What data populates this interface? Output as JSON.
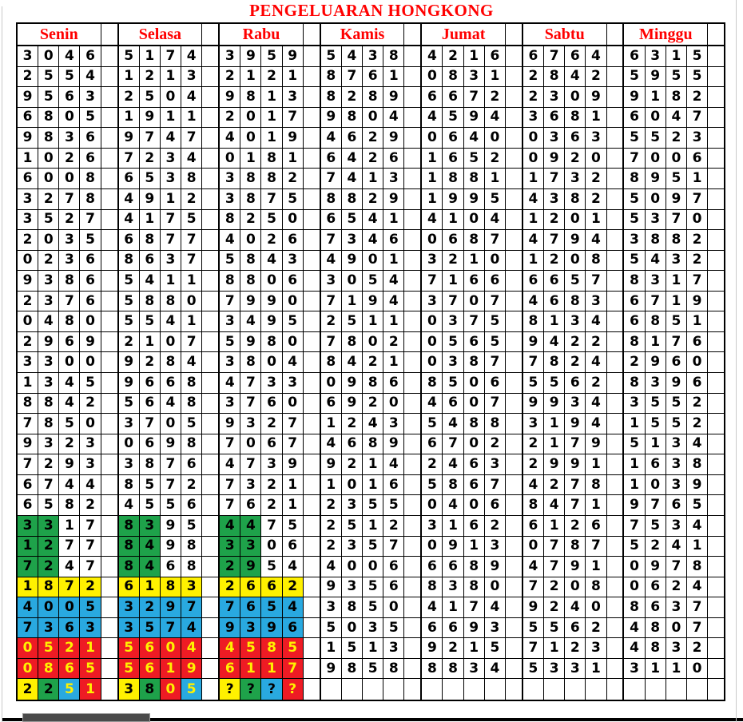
{
  "title": "PENGELUARAN HONGKONG",
  "days": [
    "Senin",
    "Selasa",
    "Rabu",
    "Kamis",
    "Jumat",
    "Sabtu",
    "Minggu"
  ],
  "colors": {
    "header_text": "#FF0000",
    "green": "#1EA24A",
    "yellow": "#FFF100",
    "blue": "#29A9E0",
    "red": "#EE1B24",
    "red_text": "#FFF100",
    "black": "#000000"
  },
  "table": {
    "rows": [
      [
        "3046",
        "5174",
        "3959",
        "5438",
        "4216",
        "6764",
        "6315"
      ],
      [
        "2554",
        "1213",
        "2121",
        "8761",
        "0831",
        "2842",
        "5955"
      ],
      [
        "9563",
        "2504",
        "9813",
        "8289",
        "6672",
        "2309",
        "9182"
      ],
      [
        "6805",
        "1911",
        "2017",
        "9804",
        "4594",
        "3681",
        "6047"
      ],
      [
        "9836",
        "9747",
        "4019",
        "4629",
        "0640",
        "0363",
        "5523"
      ],
      [
        "1026",
        "7234",
        "0181",
        "6426",
        "1652",
        "0920",
        "7006"
      ],
      [
        "6008",
        "6538",
        "3882",
        "7413",
        "1881",
        "1732",
        "8951"
      ],
      [
        "3278",
        "4912",
        "3875",
        "8829",
        "1995",
        "4382",
        "5097"
      ],
      [
        "3527",
        "4175",
        "8250",
        "6541",
        "4104",
        "1201",
        "5370"
      ],
      [
        "2035",
        "6877",
        "4026",
        "7346",
        "0687",
        "4794",
        "3882"
      ],
      [
        "0236",
        "8637",
        "5843",
        "4901",
        "3210",
        "1208",
        "5432"
      ],
      [
        "9386",
        "5411",
        "8806",
        "3054",
        "7166",
        "6657",
        "8317"
      ],
      [
        "2376",
        "5880",
        "7990",
        "7194",
        "3707",
        "4683",
        "6719"
      ],
      [
        "0480",
        "5541",
        "3495",
        "2511",
        "0375",
        "8134",
        "6851"
      ],
      [
        "2969",
        "2107",
        "5980",
        "7802",
        "0565",
        "9422",
        "8176"
      ],
      [
        "3300",
        "9284",
        "3804",
        "8421",
        "0387",
        "7824",
        "2960"
      ],
      [
        "1345",
        "9668",
        "4733",
        "0986",
        "8506",
        "5562",
        "8396"
      ],
      [
        "8842",
        "5648",
        "3760",
        "6920",
        "4607",
        "9934",
        "3552"
      ],
      [
        "7850",
        "3705",
        "9327",
        "1243",
        "5488",
        "3194",
        "1552"
      ],
      [
        "9323",
        "0698",
        "7067",
        "4689",
        "6702",
        "2179",
        "5134"
      ],
      [
        "7293",
        "3876",
        "4739",
        "9214",
        "2463",
        "2991",
        "1638"
      ],
      [
        "6744",
        "8572",
        "7321",
        "1016",
        "5867",
        "4278",
        "1039"
      ],
      [
        "6582",
        "4556",
        "7621",
        "2355",
        "0406",
        "8471",
        "9765"
      ],
      [
        "3317",
        "8395",
        "4475",
        "2512",
        "3162",
        "6126",
        "7534"
      ],
      [
        "1277",
        "8498",
        "3306",
        "2357",
        "0913",
        "0787",
        "5241"
      ],
      [
        "7247",
        "8468",
        "2954",
        "4006",
        "6689",
        "4791",
        "0978"
      ],
      [
        "1872",
        "6183",
        "2662",
        "9356",
        "8380",
        "7208",
        "0624"
      ],
      [
        "4005",
        "3297",
        "7654",
        "3850",
        "4174",
        "9240",
        "8637"
      ],
      [
        "7363",
        "3574",
        "9396",
        "5035",
        "6693",
        "5562",
        "4807"
      ],
      [
        "0521",
        "5604",
        "4585",
        "1513",
        "9215",
        "7123",
        "4832"
      ],
      [
        "0865",
        "5619",
        "6117",
        "9858",
        "8834",
        "5331",
        "3110"
      ],
      [
        "2251",
        "3805",
        "????",
        "",
        "",
        "",
        ""
      ]
    ],
    "row_styles": [
      {
        "rows": [
          23,
          24,
          25
        ],
        "cols": [
          0,
          1,
          2
        ],
        "digits": [
          0,
          1
        ],
        "bg": "green",
        "fg": "black"
      },
      {
        "rows": [
          26
        ],
        "cols": [
          0,
          1,
          2
        ],
        "digits": [
          0,
          1,
          2,
          3
        ],
        "bg": "yellow",
        "fg": "black"
      },
      {
        "rows": [
          27,
          28
        ],
        "cols": [
          0,
          1,
          2
        ],
        "digits": [
          0,
          1,
          2,
          3
        ],
        "bg": "blue",
        "fg": "black"
      },
      {
        "rows": [
          29,
          30
        ],
        "cols": [
          0,
          1,
          2
        ],
        "digits": [
          0,
          1,
          2,
          3
        ],
        "bg": "red",
        "fg": "red_text"
      }
    ],
    "last_row": {
      "row": 31,
      "cells": {
        "0": [
          [
            "yellow",
            "black"
          ],
          [
            "green",
            "black"
          ],
          [
            "blue",
            "red_text"
          ],
          [
            "red",
            "red_text"
          ]
        ],
        "1": [
          [
            "yellow",
            "black"
          ],
          [
            "green",
            "black"
          ],
          [
            "red",
            "red_text"
          ],
          [
            "blue",
            "red_text"
          ]
        ],
        "2": [
          [
            "yellow",
            "black"
          ],
          [
            "green",
            "black"
          ],
          [
            "blue",
            "black"
          ],
          [
            "red",
            "red_text"
          ]
        ]
      }
    }
  }
}
